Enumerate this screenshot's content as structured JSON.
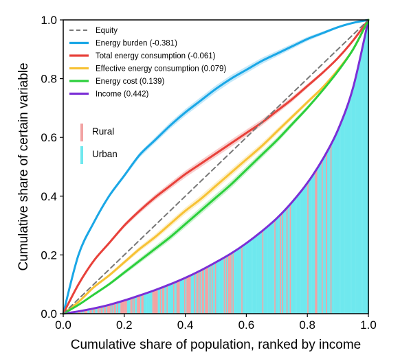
{
  "chart_data": {
    "type": "line",
    "title": "",
    "xlabel": "Cumulative share of population, ranked by income",
    "ylabel": "Cumulative share of certain variable",
    "xlim": [
      0,
      1
    ],
    "ylim": [
      0,
      1
    ],
    "xticks": [
      "0.0",
      "0.2",
      "0.4",
      "0.6",
      "0.8",
      "1.0"
    ],
    "yticks": [
      "0.0",
      "0.2",
      "0.4",
      "0.6",
      "0.8",
      "1.0"
    ],
    "grid": false,
    "legend_position": "top-left",
    "x": [
      0,
      0.05,
      0.1,
      0.15,
      0.2,
      0.25,
      0.3,
      0.35,
      0.4,
      0.45,
      0.5,
      0.55,
      0.6,
      0.65,
      0.7,
      0.75,
      0.8,
      0.85,
      0.9,
      0.95,
      1.0
    ],
    "series": [
      {
        "name": "Equity",
        "color": "#777777",
        "dashed": true,
        "values": [
          0,
          0.05,
          0.1,
          0.15,
          0.2,
          0.25,
          0.3,
          0.35,
          0.4,
          0.45,
          0.5,
          0.55,
          0.6,
          0.65,
          0.7,
          0.75,
          0.8,
          0.85,
          0.9,
          0.95,
          1.0
        ]
      },
      {
        "name": "Energy burden (-0.381)",
        "color": "#1aa7e6",
        "values": [
          0,
          0.2,
          0.31,
          0.4,
          0.47,
          0.54,
          0.59,
          0.64,
          0.685,
          0.725,
          0.765,
          0.8,
          0.83,
          0.86,
          0.885,
          0.91,
          0.935,
          0.955,
          0.975,
          0.99,
          1.0
        ]
      },
      {
        "name": "Total energy consumption (-0.061)",
        "color": "#e8413a",
        "values": [
          0,
          0.1,
          0.18,
          0.24,
          0.3,
          0.35,
          0.395,
          0.435,
          0.475,
          0.51,
          0.545,
          0.58,
          0.615,
          0.65,
          0.69,
          0.73,
          0.775,
          0.82,
          0.87,
          0.93,
          1.0
        ]
      },
      {
        "name": "Effective energy consumption (0.079)",
        "color": "#f7c235",
        "values": [
          0,
          0.04,
          0.09,
          0.13,
          0.175,
          0.22,
          0.26,
          0.305,
          0.35,
          0.39,
          0.435,
          0.48,
          0.525,
          0.57,
          0.62,
          0.67,
          0.72,
          0.77,
          0.83,
          0.9,
          1.0
        ]
      },
      {
        "name": "Energy cost (0.139)",
        "color": "#2ccf3c",
        "values": [
          0,
          0.03,
          0.065,
          0.1,
          0.14,
          0.18,
          0.22,
          0.26,
          0.305,
          0.35,
          0.395,
          0.44,
          0.49,
          0.54,
          0.59,
          0.645,
          0.7,
          0.76,
          0.825,
          0.9,
          1.0
        ]
      },
      {
        "name": "Income (0.442)",
        "color": "#7b2fd6",
        "values": [
          0,
          0.008,
          0.018,
          0.03,
          0.045,
          0.062,
          0.08,
          0.1,
          0.122,
          0.147,
          0.175,
          0.205,
          0.24,
          0.28,
          0.325,
          0.38,
          0.445,
          0.525,
          0.625,
          0.77,
          1.0
        ]
      }
    ],
    "bar_legend": [
      {
        "name": "Rural",
        "color": "#f2a3a3"
      },
      {
        "name": "Urban",
        "color": "#6fe8ee"
      }
    ]
  }
}
